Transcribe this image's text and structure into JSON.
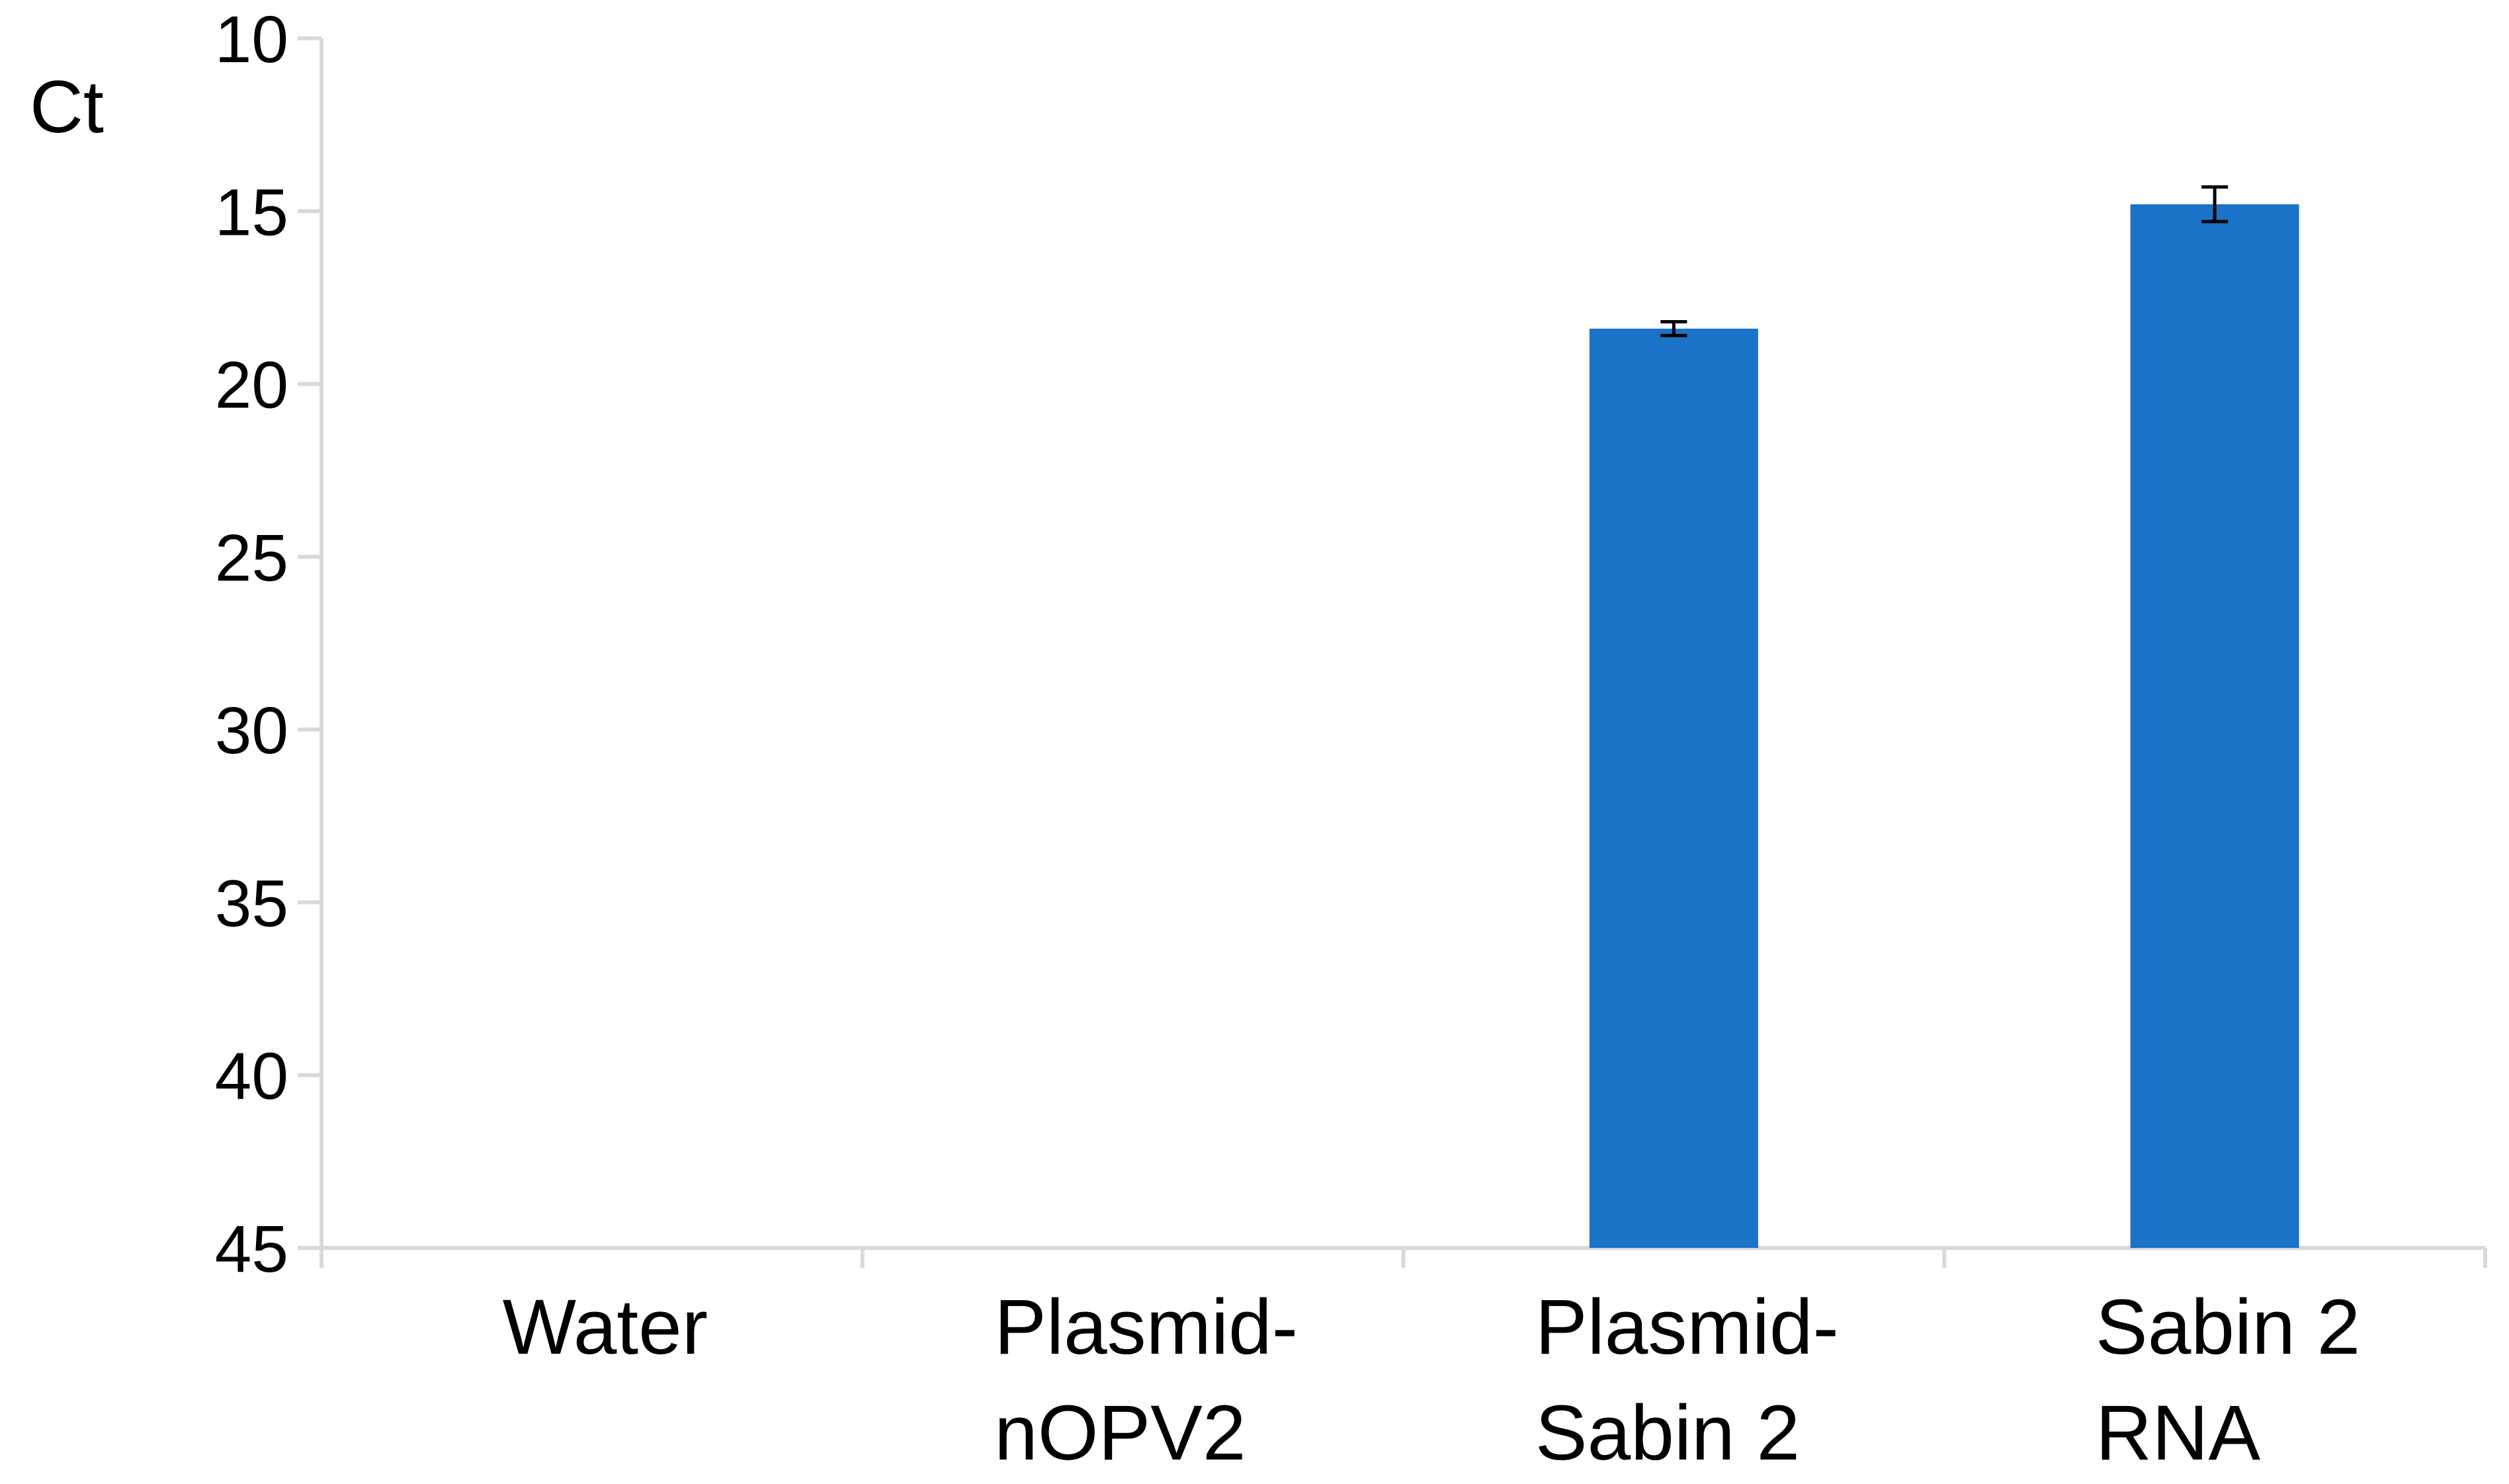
{
  "chart_data": {
    "type": "bar",
    "y_label": "Ct",
    "categories": [
      [
        "Water"
      ],
      [
        "Plasmid-",
        "nOPV2"
      ],
      [
        "Plasmid-",
        "Sabin 2"
      ],
      [
        "Sabin 2",
        "RNA"
      ]
    ],
    "values": [
      null,
      null,
      18.4,
      14.8
    ],
    "errors": [
      null,
      null,
      0.2,
      0.5
    ],
    "color": "#1a73c8",
    "ylim": [
      10,
      45
    ],
    "y_inverted": true,
    "yticks": [
      10,
      15,
      20,
      25,
      30,
      35,
      40,
      45
    ],
    "grid": false
  }
}
